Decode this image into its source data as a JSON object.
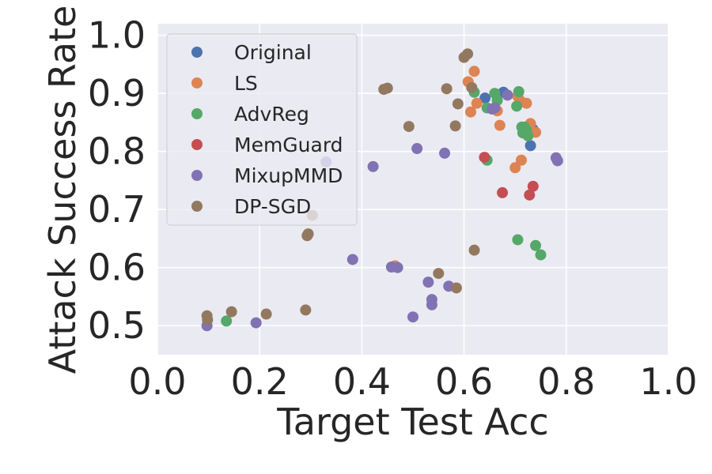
{
  "chart_data": {
    "type": "scatter",
    "title": "",
    "xlabel": "Target Test Acc",
    "ylabel": "Attack Success Rate",
    "xlim": [
      0.0,
      1.0
    ],
    "ylim": [
      0.45,
      1.02
    ],
    "xticks": [
      0.0,
      0.2,
      0.4,
      0.6,
      0.8,
      1.0
    ],
    "xtick_labels": [
      "0.0",
      "0.2",
      "0.4",
      "0.6",
      "0.8",
      "1.0"
    ],
    "yticks": [
      0.5,
      0.6,
      0.7,
      0.8,
      0.9,
      1.0
    ],
    "ytick_labels": [
      "0.5",
      "0.6",
      "0.7",
      "0.8",
      "0.9",
      "1.0"
    ],
    "grid": true,
    "legend_position": "top-left",
    "series": [
      {
        "name": "Original",
        "color": "#4c72b0",
        "points": [
          [
            0.641,
            0.892
          ],
          [
            0.677,
            0.902
          ],
          [
            0.73,
            0.81
          ],
          [
            0.735,
            0.838
          ],
          [
            0.66,
            0.875
          ]
        ]
      },
      {
        "name": "LS",
        "color": "#dd8452",
        "points": [
          [
            0.62,
            0.938
          ],
          [
            0.608,
            0.92
          ],
          [
            0.625,
            0.883
          ],
          [
            0.613,
            0.868
          ],
          [
            0.665,
            0.87
          ],
          [
            0.67,
            0.845
          ],
          [
            0.705,
            0.895
          ],
          [
            0.71,
            0.887
          ],
          [
            0.722,
            0.883
          ],
          [
            0.73,
            0.848
          ],
          [
            0.74,
            0.833
          ],
          [
            0.712,
            0.785
          ],
          [
            0.7,
            0.772
          ],
          [
            0.465,
            0.603
          ]
        ]
      },
      {
        "name": "AdvReg",
        "color": "#55a868",
        "points": [
          [
            0.62,
            0.902
          ],
          [
            0.66,
            0.9
          ],
          [
            0.645,
            0.875
          ],
          [
            0.665,
            0.888
          ],
          [
            0.707,
            0.903
          ],
          [
            0.703,
            0.878
          ],
          [
            0.713,
            0.842
          ],
          [
            0.718,
            0.842
          ],
          [
            0.715,
            0.832
          ],
          [
            0.722,
            0.837
          ],
          [
            0.725,
            0.827
          ],
          [
            0.645,
            0.785
          ],
          [
            0.705,
            0.648
          ],
          [
            0.74,
            0.638
          ],
          [
            0.75,
            0.622
          ],
          [
            0.135,
            0.508
          ]
        ]
      },
      {
        "name": "MemGuard",
        "color": "#c44e52",
        "points": [
          [
            0.64,
            0.79
          ],
          [
            0.675,
            0.729
          ],
          [
            0.735,
            0.74
          ],
          [
            0.728,
            0.725
          ]
        ]
      },
      {
        "name": "MixupMMD",
        "color": "#8172b3",
        "points": [
          [
            0.685,
            0.897
          ],
          [
            0.66,
            0.875
          ],
          [
            0.655,
            0.873
          ],
          [
            0.78,
            0.789
          ],
          [
            0.783,
            0.784
          ],
          [
            0.33,
            0.782
          ],
          [
            0.422,
            0.774
          ],
          [
            0.508,
            0.805
          ],
          [
            0.562,
            0.797
          ],
          [
            0.382,
            0.614
          ],
          [
            0.458,
            0.601
          ],
          [
            0.47,
            0.6
          ],
          [
            0.53,
            0.575
          ],
          [
            0.57,
            0.568
          ],
          [
            0.537,
            0.545
          ],
          [
            0.537,
            0.536
          ],
          [
            0.5,
            0.515
          ],
          [
            0.193,
            0.505
          ],
          [
            0.097,
            0.5
          ]
        ]
      },
      {
        "name": "DP-SGD",
        "color": "#937860",
        "points": [
          [
            0.6,
            0.962
          ],
          [
            0.607,
            0.968
          ],
          [
            0.443,
            0.907
          ],
          [
            0.45,
            0.909
          ],
          [
            0.566,
            0.908
          ],
          [
            0.615,
            0.91
          ],
          [
            0.588,
            0.882
          ],
          [
            0.492,
            0.843
          ],
          [
            0.583,
            0.844
          ],
          [
            0.303,
            0.69
          ],
          [
            0.295,
            0.658
          ],
          [
            0.293,
            0.655
          ],
          [
            0.62,
            0.63
          ],
          [
            0.55,
            0.59
          ],
          [
            0.585,
            0.565
          ],
          [
            0.29,
            0.527
          ],
          [
            0.213,
            0.52
          ],
          [
            0.145,
            0.524
          ],
          [
            0.097,
            0.517
          ],
          [
            0.098,
            0.51
          ]
        ]
      }
    ]
  }
}
